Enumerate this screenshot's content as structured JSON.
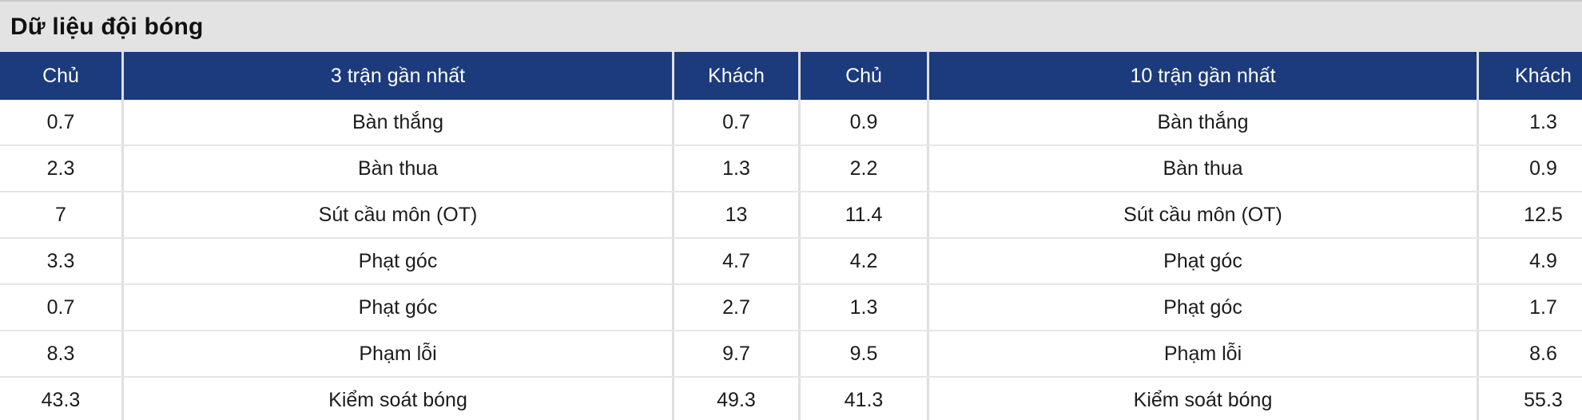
{
  "page": {
    "title": "Dữ liệu đội bóng"
  },
  "table": {
    "headers": [
      "Chủ",
      "3 trận gần nhất",
      "Khách",
      "Chủ",
      "10 trận gần nhất",
      "Khách"
    ],
    "rows": [
      [
        "0.7",
        "Bàn thắng",
        "0.7",
        "0.9",
        "Bàn thắng",
        "1.3"
      ],
      [
        "2.3",
        "Bàn thua",
        "1.3",
        "2.2",
        "Bàn thua",
        "0.9"
      ],
      [
        "7",
        "Sút cầu môn (OT)",
        "13",
        "11.4",
        "Sút cầu môn (OT)",
        "12.5"
      ],
      [
        "3.3",
        "Phạt góc",
        "4.7",
        "4.2",
        "Phạt góc",
        "4.9"
      ],
      [
        "0.7",
        "Phạt góc",
        "2.7",
        "1.3",
        "Phạt góc",
        "1.7"
      ],
      [
        "8.3",
        "Phạm lỗi",
        "9.7",
        "9.5",
        "Phạm lỗi",
        "8.6"
      ],
      [
        "43.3",
        "Kiểm soát bóng",
        "49.3",
        "41.3",
        "Kiểm soát bóng",
        "55.3"
      ]
    ]
  },
  "colors": {
    "header_bg": "#1B3B7C",
    "title_bg": "#E3E3E3",
    "divider": "#DFDFDF",
    "header_text": "#FFFFFF",
    "body_text": "#1C1C1C"
  }
}
